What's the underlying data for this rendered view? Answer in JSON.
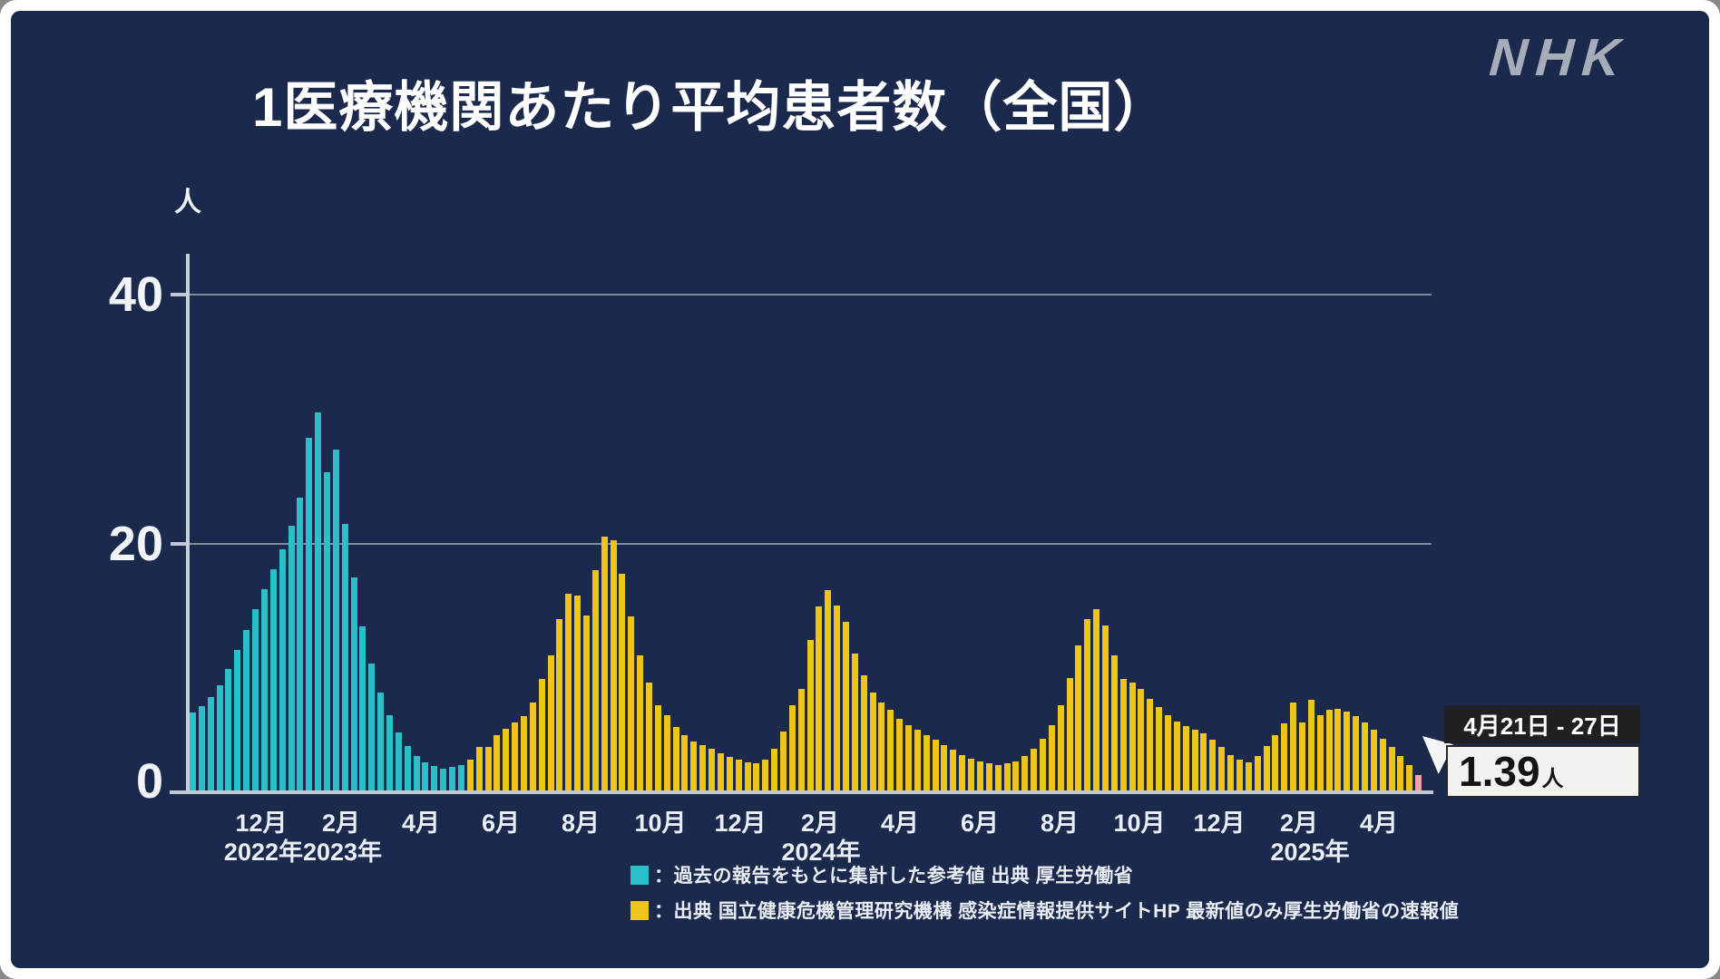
{
  "brand": {
    "logo": "NHK"
  },
  "title": "1医療機関あたり平均患者数（全国）",
  "y_axis": {
    "unit": "人",
    "ticks": [
      "40",
      "20",
      "0"
    ]
  },
  "legend": {
    "items": [
      {
        "label": "：過去の報告をもとに集計した参考値 出典 厚生労働省",
        "color": "#2bbfca"
      },
      {
        "label": "：出典 国立健康危機管理研究機構 感染症情報提供サイトHP 最新値のみ厚生労働省の速報値",
        "color": "#eec61a"
      }
    ]
  },
  "callout": {
    "date_range": "4月21日 - 27日",
    "value": "1.39",
    "unit": "人"
  },
  "colors": {
    "panel_background": "#1b2a4c",
    "frame": "#ffffff",
    "gridline": "#7f8aa0",
    "axis": "#c9cedb",
    "text": "#ffffff",
    "logo_gray": "#a7adb8",
    "series_reference": "#2bbfca",
    "series_official": "#eec61a",
    "latest_highlight": "#f2a1a9"
  },
  "chart_data": {
    "type": "bar",
    "title": "1医療機関あたり平均患者数（全国）",
    "ylabel": "人",
    "ylim": [
      0,
      43
    ],
    "yticks": [
      0,
      20,
      40
    ],
    "grid": "horizontal",
    "x_month_labels": [
      "12月",
      "2月",
      "4月",
      "6月",
      "8月",
      "10月",
      "12月",
      "2月",
      "4月",
      "6月",
      "8月",
      "10月",
      "12月",
      "2月",
      "4月"
    ],
    "x_year_labels": [
      "2022年2023年",
      "2024年",
      "2025年"
    ],
    "series": [
      {
        "name": "過去の報告をもとに集計した参考値 出典 厚生労働省",
        "color": "#2bbfca",
        "values": [
          6.4,
          6.9,
          7.6,
          8.6,
          9.9,
          11.4,
          13.0,
          14.7,
          16.3,
          17.9,
          19.5,
          21.4,
          23.6,
          28.4,
          30.5,
          25.7,
          27.5,
          21.5,
          17.2,
          13.3,
          10.3,
          8.0,
          6.2,
          4.8,
          3.7,
          2.9,
          2.4,
          2.1,
          1.9,
          2.0,
          2.2
        ]
      },
      {
        "name": "出典 国立健康危機管理研究機構 感染症情報提供サイトHP 最新値のみ厚生労働省の速報値",
        "color": "#eec61a",
        "values": [
          2.6,
          3.6,
          3.6,
          4.6,
          5.1,
          5.6,
          6.1,
          7.2,
          9.1,
          11.0,
          13.9,
          15.9,
          15.8,
          14.2,
          17.8,
          20.5,
          20.2,
          17.5,
          14.1,
          11.0,
          8.8,
          7.0,
          6.2,
          5.2,
          4.6,
          4.1,
          3.8,
          3.5,
          3.1,
          2.8,
          2.6,
          2.4,
          2.3,
          2.6,
          3.5,
          4.9,
          7.0,
          8.3,
          12.2,
          14.9,
          16.2,
          15.0,
          13.7,
          11.1,
          9.4,
          8.0,
          7.2,
          6.6,
          5.9,
          5.4,
          5.0,
          4.6,
          4.2,
          3.8,
          3.4,
          3.0,
          2.7,
          2.5,
          2.3,
          2.2,
          2.3,
          2.5,
          2.9,
          3.5,
          4.3,
          5.4,
          7.0,
          9.2,
          11.8,
          13.9,
          14.7,
          13.4,
          11.0,
          9.1,
          8.8,
          8.3,
          7.5,
          6.8,
          6.2,
          5.7,
          5.3,
          5.0,
          4.7,
          4.2,
          3.6,
          3.0,
          2.6,
          2.4,
          2.9,
          3.7,
          4.6,
          5.5,
          7.2,
          5.6,
          7.4,
          6.2,
          6.6,
          6.7,
          6.5,
          6.1,
          5.6,
          5.0,
          4.3,
          3.6,
          2.9,
          2.2,
          1.39
        ]
      }
    ],
    "highlight_last_bar": {
      "value": 1.39,
      "color": "#f2a1a9",
      "label": "4月21日 - 27日"
    },
    "legend_position": "bottom"
  }
}
